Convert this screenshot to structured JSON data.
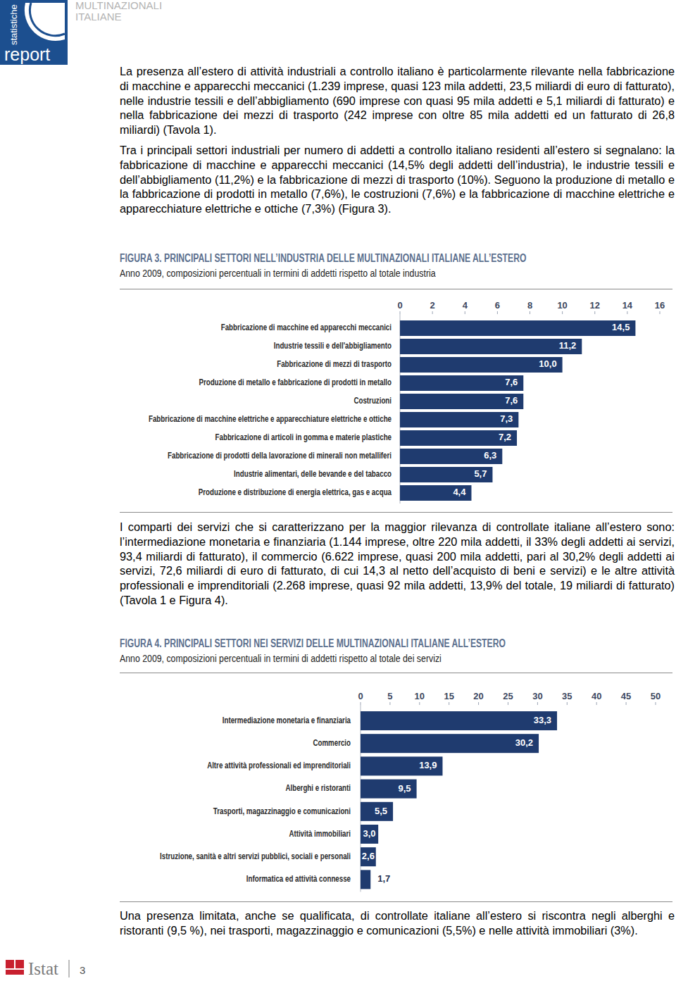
{
  "header": {
    "logo": {
      "top": "statistiche",
      "bottom": "report"
    },
    "section": [
      "MULTINAZIONALI",
      "ITALIANE"
    ]
  },
  "paragraphs": [
    "La presenza all’estero di attività industriali a controllo italiano è particolarmente rilevante nella fabbricazione di macchine e apparecchi meccanici (1.239 imprese, quasi 123 mila addetti, 23,5 miliardi di euro di fatturato), nelle industrie tessili e dell’abbigliamento (690 imprese con quasi 95 mila addetti e 5,1 miliardi di fatturato) e nella fabbricazione dei mezzi di trasporto (242 imprese con oltre 85 mila addetti ed un fatturato di 26,8 miliardi) (Tavola 1).",
    "Tra i principali settori industriali per numero di addetti a controllo italiano residenti all’estero si segnalano: la fabbricazione di macchine e apparecchi meccanici (14,5% degli addetti dell’industria), le industrie tessili e dell’abbigliamento (11,2%) e la fabbricazione di mezzi di trasporto (10%). Seguono la produzione di metallo e la fabbricazione di prodotti in metallo (7,6%), le costruzioni (7,6%) e la fabbricazione di macchine elettriche e apparecchiature elettriche e ottiche (7,3%) (Figura 3).",
    "I comparti dei servizi che si caratterizzano per la maggior rilevanza di controllate italiane all’estero sono: l’intermediazione monetaria e finanziaria (1.144 imprese, oltre 220 mila addetti, il 33% degli addetti ai servizi, 93,4 miliardi di fatturato), il commercio (6.622 imprese, quasi 200 mila addetti, pari al 30,2% degli addetti ai servizi, 72,6 miliardi di euro di fatturato, di cui 14,3 al netto dell’acquisto di beni e servizi) e le altre attività professionali e imprenditoriali (2.268 imprese, quasi 92 mila addetti, 13,9% del totale, 19 miliardi di fatturato) (Tavola 1 e Figura 4).",
    "Una presenza limitata, anche se qualificata, di controllate italiane all’estero si riscontra negli alberghi e ristoranti (9,5 %), nei trasporti, magazzinaggio e comunicazioni (5,5%)  e nelle attività immobiliari (3%)."
  ],
  "chart_data": [
    {
      "type": "bar",
      "orientation": "horizontal",
      "title": "FIGURA 3. PRINCIPALI SETTORI NELL’INDUSTRIA DELLE MULTINAZIONALI ITALIANE ALL’ESTERO",
      "subtitle": "Anno 2009, composizioni percentuali in termini di addetti rispetto al totale industria",
      "categories": [
        "Fabbricazione di macchine ed apparecchi meccanici",
        "Industrie tessili e dell'abbigliamento",
        "Fabbricazione di mezzi di trasporto",
        "Produzione di metallo e fabbricazione di prodotti in metallo",
        "Costruzioni",
        "Fabbricazione di macchine elettriche e apparecchiature elettriche e ottiche",
        "Fabbricazione di articoli in gomma e materie plastiche",
        "Fabbricazione di prodotti della lavorazione di minerali non metalliferi",
        "Industrie alimentari, delle bevande e del tabacco",
        "Produzione e distribuzione di energia elettrica, gas e acqua"
      ],
      "values": [
        14.5,
        11.2,
        10.0,
        7.6,
        7.6,
        7.3,
        7.2,
        6.3,
        5.7,
        4.4
      ],
      "value_labels": [
        "14,5",
        "11,2",
        "10,0",
        "7,6",
        "7,6",
        "7,3",
        "7,2",
        "6,3",
        "5,7",
        "4,4"
      ],
      "color": "#1f3b6f",
      "xlim": [
        0,
        16
      ],
      "xticks": [
        0,
        2,
        4,
        6,
        8,
        10,
        12,
        14,
        16
      ],
      "data_labels": true,
      "grid": false
    },
    {
      "type": "bar",
      "orientation": "horizontal",
      "title": "FIGURA 4. PRINCIPALI SETTORI NEI SERVIZI DELLE MULTINAZIONALI ITALIANE ALL’ESTERO",
      "subtitle": "Anno 2009, composizioni percentuali in termini di addetti rispetto al totale dei servizi",
      "categories": [
        "Intermediazione monetaria e finanziaria",
        "Commercio",
        "Altre attività professionali ed imprenditoriali",
        "Alberghi e ristoranti",
        "Trasporti, magazzinaggio e comunicazioni",
        "Attività immobiliari",
        "Istruzione, sanità e altri servizi pubblici, sociali e personali",
        "Informatica ed attività connesse"
      ],
      "values": [
        33.3,
        30.2,
        13.9,
        9.5,
        5.5,
        3.0,
        2.6,
        1.7
      ],
      "value_labels": [
        "33,3",
        "30,2",
        "13,9",
        "9,5",
        "5,5",
        "3,0",
        "2,6",
        "1,7"
      ],
      "color": "#1f3b6f",
      "xlim": [
        0,
        50
      ],
      "xticks": [
        0,
        5,
        10,
        15,
        20,
        25,
        30,
        35,
        40,
        45,
        50
      ],
      "data_labels": true,
      "grid": false
    }
  ],
  "footer": {
    "brand": "Istat",
    "page": "3"
  }
}
